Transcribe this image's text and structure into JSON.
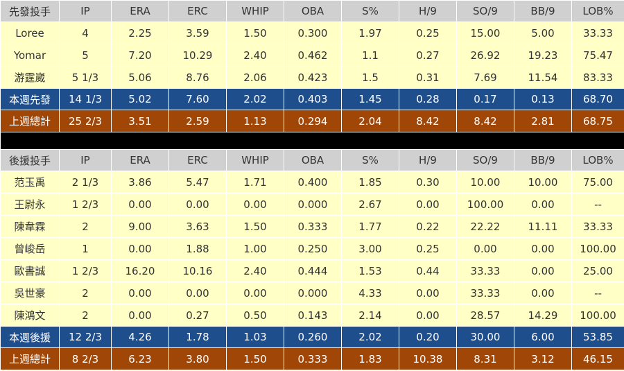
{
  "columns": [
    "IP",
    "ERA",
    "ERC",
    "WHIP",
    "OBA",
    "S%",
    "H/9",
    "SO/9",
    "BB/9",
    "LOB%"
  ],
  "sections": [
    {
      "header": "先發投手",
      "rows": [
        [
          "Loree",
          "4",
          "2.25",
          "3.59",
          "1.50",
          "0.300",
          "1.97",
          "0.25",
          "15.00",
          "5.00",
          "33.33"
        ],
        [
          "Yomar",
          "5",
          "7.20",
          "10.29",
          "2.40",
          "0.462",
          "1.1",
          "0.27",
          "26.92",
          "19.23",
          "75.47"
        ],
        [
          "游霆崴",
          "5 1/3",
          "5.06",
          "8.76",
          "2.06",
          "0.423",
          "1.5",
          "0.31",
          "7.69",
          "11.54",
          "83.33"
        ]
      ],
      "this_week": [
        "本週先發",
        "14 1/3",
        "5.02",
        "7.60",
        "2.02",
        "0.403",
        "1.45",
        "0.28",
        "0.17",
        "0.13",
        "68.70"
      ],
      "last_week": [
        "上週總計",
        "25 2/3",
        "3.51",
        "2.59",
        "1.13",
        "0.294",
        "2.04",
        "8.42",
        "8.42",
        "2.81",
        "68.75"
      ]
    },
    {
      "header": "後援投手",
      "rows": [
        [
          "范玉禹",
          "2 1/3",
          "3.86",
          "5.47",
          "1.71",
          "0.400",
          "1.85",
          "0.30",
          "10.00",
          "10.00",
          "75.00"
        ],
        [
          "王尉永",
          "1 2/3",
          "0.00",
          "0.00",
          "0.00",
          "0.000",
          "2.67",
          "0.00",
          "100.00",
          "0.00",
          "--"
        ],
        [
          "陳韋霖",
          "2",
          "9.00",
          "3.63",
          "1.50",
          "0.333",
          "1.77",
          "0.22",
          "22.22",
          "11.11",
          "33.33"
        ],
        [
          "曾峻岳",
          "1",
          "0.00",
          "1.88",
          "1.00",
          "0.250",
          "3.00",
          "0.25",
          "0.00",
          "0.00",
          "100.00"
        ],
        [
          "歐書誠",
          "1 2/3",
          "16.20",
          "10.16",
          "2.40",
          "0.444",
          "1.53",
          "0.44",
          "33.33",
          "0.00",
          "25.00"
        ],
        [
          "吳世豪",
          "2",
          "0.00",
          "0.00",
          "0.00",
          "0.000",
          "4.33",
          "0.00",
          "33.33",
          "0.00",
          "--"
        ],
        [
          "陳鴻文",
          "2",
          "0.00",
          "0.27",
          "0.50",
          "0.143",
          "2.14",
          "0.00",
          "28.57",
          "14.29",
          "100.00"
        ]
      ],
      "this_week": [
        "本週後援",
        "12 2/3",
        "4.26",
        "1.78",
        "1.03",
        "0.260",
        "2.02",
        "0.20",
        "30.00",
        "6.00",
        "53.85"
      ],
      "last_week": [
        "上週總計",
        "8 2/3",
        "6.23",
        "3.80",
        "1.50",
        "0.333",
        "1.83",
        "10.38",
        "8.31",
        "3.12",
        "46.15"
      ]
    }
  ],
  "colors": {
    "header_bg": "#d0d0d0",
    "row_bg": "#ffffc6",
    "this_week_bg": "#1f4e8c",
    "last_week_bg": "#a04708",
    "separator": "#000000"
  }
}
